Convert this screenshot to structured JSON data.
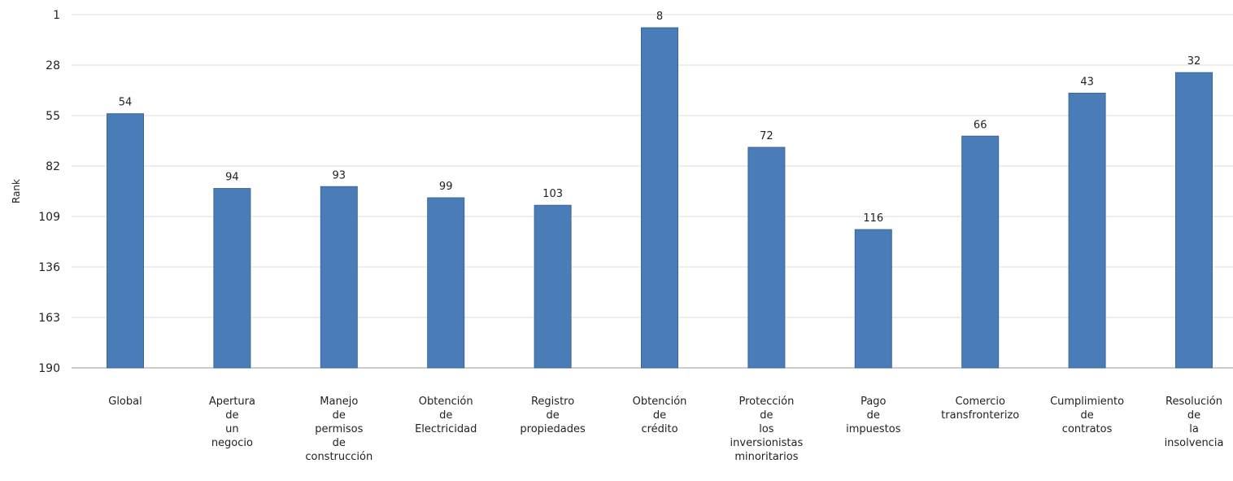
{
  "chart_data": {
    "type": "bar",
    "ylabel": "Rank",
    "y_inverted": true,
    "ylim": [
      1,
      190
    ],
    "yticks": [
      "1",
      "28",
      "55",
      "82",
      "109",
      "136",
      "163",
      "190"
    ],
    "categories": [
      [
        "Global"
      ],
      [
        "Apertura",
        "de",
        "un",
        "negocio"
      ],
      [
        "Manejo",
        "de",
        "permisos",
        "de",
        "construcción"
      ],
      [
        "Obtención",
        "de",
        "Electricidad"
      ],
      [
        "Registro",
        "de",
        "propiedades"
      ],
      [
        "Obtención",
        "de",
        "crédito"
      ],
      [
        "Protección",
        "de",
        "los",
        "inversionistas",
        "minoritarios"
      ],
      [
        "Pago",
        "de",
        "impuestos"
      ],
      [
        "Comercio",
        "transfronterizo"
      ],
      [
        "Cumplimiento",
        "de",
        "contratos"
      ],
      [
        "Resolución",
        "de",
        "la",
        "insolvencia"
      ]
    ],
    "values": [
      54,
      94,
      93,
      99,
      103,
      8,
      72,
      116,
      66,
      43,
      32
    ],
    "value_labels": [
      "54",
      "94",
      "93",
      "99",
      "103",
      "8",
      "72",
      "116",
      "66",
      "43",
      "32"
    ],
    "bar_color": "#4a7db8",
    "bar_border": "#3a679b",
    "grid": true
  }
}
